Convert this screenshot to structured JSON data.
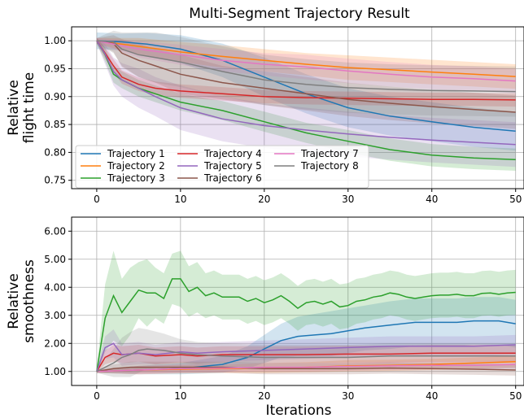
{
  "chart_data": {
    "title": "Multi-Segment Trajectory Result",
    "series_names": [
      "Trajectory 1",
      "Trajectory 2",
      "Trajectory 3",
      "Trajectory 4",
      "Trajectory 5",
      "Trajectory 6",
      "Trajectory 7",
      "Trajectory 8"
    ],
    "colors": [
      "#1f77b4",
      "#ff7f0e",
      "#2ca02c",
      "#d62728",
      "#9467bd",
      "#8c564b",
      "#e377c2",
      "#7f7f7f"
    ],
    "legend_position": "lower-left (top panel)",
    "grid": true,
    "panels": [
      {
        "type": "line",
        "ylabel": [
          "Relative",
          "flight time"
        ],
        "xlabel": "",
        "xlim": [
          -3,
          51
        ],
        "ylim": [
          0.735,
          1.025
        ],
        "xticks": [
          0,
          10,
          20,
          30,
          40,
          50
        ],
        "yticks": [
          0.75,
          0.8,
          0.85,
          0.9,
          0.95,
          1.0
        ],
        "ytick_labels": [
          "0.75",
          "0.80",
          "0.85",
          "0.90",
          "0.95",
          "1.00"
        ],
        "series": [
          {
            "name": "Trajectory 1",
            "x": [
              0,
              3,
              6,
              10,
              15,
              20,
              25,
              30,
              35,
              40,
              45,
              50
            ],
            "y": [
              1.0,
              0.998,
              0.994,
              0.985,
              0.965,
              0.935,
              0.905,
              0.88,
              0.865,
              0.855,
              0.845,
              0.838
            ],
            "band": [
              0.015,
              0.015,
              0.02,
              0.025,
              0.03,
              0.035,
              0.035,
              0.035,
              0.035,
              0.035,
              0.035,
              0.035
            ]
          },
          {
            "name": "Trajectory 2",
            "x": [
              0,
              5,
              10,
              15,
              20,
              25,
              30,
              35,
              40,
              45,
              50
            ],
            "y": [
              1.0,
              0.99,
              0.98,
              0.972,
              0.965,
              0.958,
              0.952,
              0.948,
              0.944,
              0.94,
              0.936
            ],
            "band": [
              0.005,
              0.015,
              0.018,
              0.02,
              0.02,
              0.02,
              0.022,
              0.022,
              0.022,
              0.022,
              0.022
            ]
          },
          {
            "name": "Trajectory 3",
            "x": [
              0,
              1,
              2,
              3,
              5,
              7,
              10,
              15,
              20,
              25,
              30,
              35,
              40,
              45,
              50
            ],
            "y": [
              1.0,
              0.975,
              0.94,
              0.93,
              0.915,
              0.905,
              0.89,
              0.875,
              0.855,
              0.835,
              0.82,
              0.805,
              0.795,
              0.79,
              0.787
            ],
            "band": [
              0.005,
              0.012,
              0.015,
              0.015,
              0.015,
              0.015,
              0.015,
              0.017,
              0.018,
              0.018,
              0.02,
              0.02,
              0.02,
              0.02,
              0.02
            ]
          },
          {
            "name": "Trajectory 4",
            "x": [
              0,
              1,
              2,
              3,
              5,
              7,
              10,
              15,
              20,
              25,
              30,
              35,
              40,
              45,
              50
            ],
            "y": [
              1.0,
              0.978,
              0.955,
              0.935,
              0.922,
              0.915,
              0.91,
              0.905,
              0.9,
              0.898,
              0.897,
              0.896,
              0.895,
              0.895,
              0.894
            ],
            "band": [
              0.005,
              0.01,
              0.012,
              0.012,
              0.012,
              0.012,
              0.012,
              0.012,
              0.012,
              0.012,
              0.012,
              0.012,
              0.012,
              0.012,
              0.012
            ]
          },
          {
            "name": "Trajectory 5",
            "x": [
              0,
              1,
              2,
              3,
              5,
              7,
              10,
              15,
              20,
              25,
              30,
              35,
              40,
              45,
              50
            ],
            "y": [
              1.0,
              0.976,
              0.945,
              0.93,
              0.915,
              0.9,
              0.88,
              0.86,
              0.848,
              0.84,
              0.833,
              0.827,
              0.822,
              0.818,
              0.814
            ],
            "band": [
              0.005,
              0.018,
              0.025,
              0.03,
              0.035,
              0.035,
              0.04,
              0.04,
              0.04,
              0.04,
              0.04,
              0.04,
              0.04,
              0.04,
              0.04
            ]
          },
          {
            "name": "Trajectory 6",
            "x": [
              0,
              2,
              3,
              5,
              7,
              10,
              15,
              20,
              25,
              30,
              35,
              40,
              45,
              50
            ],
            "y": [
              1.0,
              0.995,
              0.978,
              0.965,
              0.955,
              0.94,
              0.925,
              0.915,
              0.905,
              0.895,
              0.888,
              0.882,
              0.877,
              0.872
            ],
            "band": [
              0.005,
              0.015,
              0.025,
              0.03,
              0.03,
              0.035,
              0.03,
              0.03,
              0.03,
              0.03,
              0.03,
              0.03,
              0.03,
              0.03
            ]
          },
          {
            "name": "Trajectory 7",
            "x": [
              0,
              5,
              10,
              15,
              20,
              25,
              30,
              35,
              40,
              45,
              50
            ],
            "y": [
              1.0,
              0.985,
              0.975,
              0.965,
              0.958,
              0.953,
              0.946,
              0.94,
              0.935,
              0.932,
              0.928
            ],
            "band": [
              0.005,
              0.015,
              0.018,
              0.02,
              0.02,
              0.022,
              0.022,
              0.022,
              0.022,
              0.022,
              0.022
            ]
          },
          {
            "name": "Trajectory 8",
            "x": [
              0,
              2,
              3,
              5,
              7,
              10,
              15,
              20,
              25,
              30,
              35,
              40,
              45,
              50
            ],
            "y": [
              1.0,
              0.998,
              0.985,
              0.975,
              0.97,
              0.962,
              0.945,
              0.93,
              0.922,
              0.916,
              0.913,
              0.911,
              0.91,
              0.909
            ],
            "band": [
              0.005,
              0.02,
              0.03,
              0.04,
              0.045,
              0.045,
              0.045,
              0.045,
              0.045,
              0.045,
              0.045,
              0.045,
              0.045,
              0.045
            ]
          }
        ]
      },
      {
        "type": "line",
        "ylabel": [
          "Relative",
          "smoothness"
        ],
        "xlabel": "Iterations",
        "xlim": [
          -3,
          51
        ],
        "ylim": [
          0.5,
          6.5
        ],
        "xticks": [
          0,
          10,
          20,
          30,
          40,
          50
        ],
        "yticks": [
          1,
          2,
          3,
          4,
          5,
          6
        ],
        "ytick_labels": [
          "1.00",
          "2.00",
          "3.00",
          "4.00",
          "5.00",
          "6.00"
        ],
        "series": [
          {
            "name": "Trajectory 1",
            "x": [
              0,
              5,
              10,
              15,
              18,
              20,
              22,
              24,
              26,
              28,
              30,
              32,
              35,
              38,
              40,
              43,
              45,
              48,
              50
            ],
            "y": [
              1.0,
              1.05,
              1.1,
              1.25,
              1.5,
              1.8,
              2.1,
              2.25,
              2.3,
              2.35,
              2.45,
              2.55,
              2.65,
              2.75,
              2.75,
              2.75,
              2.8,
              2.8,
              2.7
            ],
            "band": [
              0.05,
              0.15,
              0.2,
              0.3,
              0.4,
              0.5,
              0.6,
              0.7,
              0.75,
              0.8,
              0.8,
              0.8,
              0.85,
              0.85,
              0.85,
              0.85,
              0.85,
              0.85,
              0.85
            ]
          },
          {
            "name": "Trajectory 2",
            "x": [
              0,
              5,
              10,
              15,
              20,
              25,
              30,
              35,
              40,
              45,
              50
            ],
            "y": [
              1.0,
              1.05,
              1.08,
              1.1,
              1.12,
              1.15,
              1.2,
              1.22,
              1.25,
              1.3,
              1.35
            ],
            "band": [
              0.05,
              0.15,
              0.15,
              0.15,
              0.18,
              0.18,
              0.2,
              0.2,
              0.2,
              0.2,
              0.2
            ]
          },
          {
            "name": "Trajectory 3",
            "x": [
              0,
              1,
              2,
              3,
              4,
              5,
              6,
              7,
              8,
              9,
              10,
              11,
              12,
              13,
              14,
              15,
              16,
              17,
              18,
              19,
              20,
              21,
              22,
              23,
              24,
              25,
              26,
              27,
              28,
              29,
              30,
              31,
              32,
              33,
              34,
              35,
              36,
              37,
              38,
              39,
              40,
              41,
              42,
              43,
              44,
              45,
              46,
              47,
              48,
              49,
              50
            ],
            "y": [
              1.0,
              2.9,
              3.7,
              3.1,
              3.5,
              3.9,
              3.8,
              3.8,
              3.6,
              4.3,
              4.3,
              3.85,
              4.0,
              3.7,
              3.8,
              3.65,
              3.65,
              3.65,
              3.5,
              3.6,
              3.45,
              3.55,
              3.7,
              3.5,
              3.25,
              3.45,
              3.5,
              3.4,
              3.5,
              3.3,
              3.35,
              3.5,
              3.55,
              3.65,
              3.7,
              3.8,
              3.75,
              3.65,
              3.6,
              3.65,
              3.7,
              3.72,
              3.72,
              3.75,
              3.7,
              3.7,
              3.78,
              3.8,
              3.75,
              3.8,
              3.82
            ],
            "band": [
              0.1,
              1.2,
              1.6,
              1.2,
              1.2,
              1.0,
              1.2,
              0.9,
              0.9,
              0.9,
              1.0,
              0.9,
              0.9,
              0.8,
              0.8,
              0.8,
              0.8,
              0.8,
              0.8,
              0.8,
              0.8,
              0.8,
              0.8,
              0.8,
              0.8,
              0.8,
              0.8,
              0.8,
              0.8,
              0.8,
              0.8,
              0.8,
              0.8,
              0.8,
              0.8,
              0.8,
              0.8,
              0.8,
              0.8,
              0.8,
              0.8,
              0.8,
              0.8,
              0.8,
              0.8,
              0.8,
              0.8,
              0.8,
              0.8,
              0.8,
              0.8
            ]
          },
          {
            "name": "Trajectory 4",
            "x": [
              0,
              1,
              2,
              3,
              5,
              7,
              10,
              12,
              15,
              20,
              25,
              30,
              35,
              40,
              45,
              50
            ],
            "y": [
              1.0,
              1.5,
              1.65,
              1.6,
              1.65,
              1.55,
              1.6,
              1.55,
              1.6,
              1.6,
              1.6,
              1.62,
              1.62,
              1.65,
              1.65,
              1.65
            ],
            "band": [
              0.05,
              0.25,
              0.3,
              0.3,
              0.3,
              0.3,
              0.3,
              0.3,
              0.3,
              0.3,
              0.3,
              0.3,
              0.3,
              0.3,
              0.3,
              0.3
            ]
          },
          {
            "name": "Trajectory 5",
            "x": [
              0,
              1,
              2,
              3,
              5,
              7,
              10,
              12,
              15,
              20,
              25,
              30,
              35,
              40,
              45,
              50
            ],
            "y": [
              1.0,
              1.85,
              2.0,
              1.6,
              1.65,
              1.6,
              1.7,
              1.65,
              1.7,
              1.75,
              1.8,
              1.85,
              1.9,
              1.9,
              1.9,
              1.95
            ],
            "band": [
              0.05,
              0.4,
              0.5,
              0.4,
              0.4,
              0.35,
              0.35,
              0.35,
              0.35,
              0.35,
              0.35,
              0.35,
              0.35,
              0.35,
              0.35,
              0.35
            ]
          },
          {
            "name": "Trajectory 6",
            "x": [
              0,
              2,
              4,
              6,
              8,
              10,
              15,
              20,
              25,
              30,
              35,
              40,
              45,
              50
            ],
            "y": [
              1.0,
              1.1,
              1.15,
              1.15,
              1.15,
              1.15,
              1.15,
              1.1,
              1.1,
              1.1,
              1.12,
              1.1,
              1.08,
              1.05
            ],
            "band": [
              0.05,
              0.15,
              0.2,
              0.2,
              0.2,
              0.2,
              0.2,
              0.2,
              0.2,
              0.2,
              0.2,
              0.2,
              0.2,
              0.2
            ]
          },
          {
            "name": "Trajectory 7",
            "x": [
              0,
              5,
              10,
              15,
              20,
              25,
              30,
              35,
              40,
              45,
              50
            ],
            "y": [
              1.0,
              1.05,
              1.1,
              1.12,
              1.15,
              1.15,
              1.18,
              1.2,
              1.22,
              1.22,
              1.25
            ],
            "band": [
              0.05,
              0.15,
              0.15,
              0.15,
              0.15,
              0.15,
              0.15,
              0.15,
              0.15,
              0.15,
              0.15
            ]
          },
          {
            "name": "Trajectory 8",
            "x": [
              0,
              2,
              3,
              4,
              5,
              6,
              8,
              10,
              12,
              15,
              20,
              25,
              30,
              35,
              40,
              45,
              50
            ],
            "y": [
              1.0,
              1.3,
              1.5,
              1.6,
              1.75,
              1.8,
              1.75,
              1.65,
              1.6,
              1.55,
              1.5,
              1.5,
              1.5,
              1.55,
              1.55,
              1.55,
              1.55
            ],
            "band": [
              0.05,
              0.5,
              0.7,
              0.8,
              0.8,
              0.7,
              0.6,
              0.5,
              0.45,
              0.45,
              0.45,
              0.45,
              0.45,
              0.45,
              0.45,
              0.45,
              0.45
            ]
          }
        ]
      }
    ]
  }
}
